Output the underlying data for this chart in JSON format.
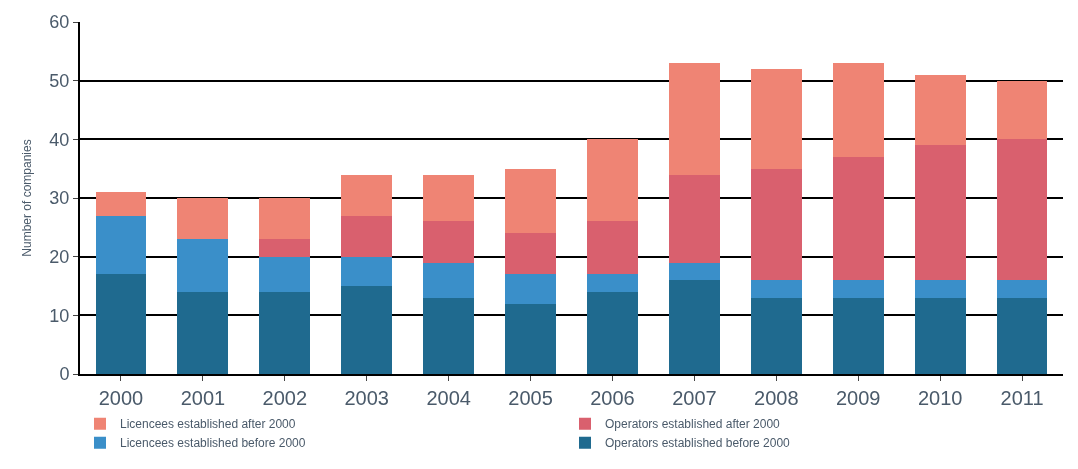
{
  "chart_data": {
    "type": "bar",
    "stacked": true,
    "ylabel": "Number of companies",
    "categories": [
      "2000",
      "2001",
      "2002",
      "2003",
      "2004",
      "2005",
      "2006",
      "2007",
      "2008",
      "2009",
      "2010",
      "2011"
    ],
    "series": [
      {
        "name": "Operators established before 2000",
        "color": "#1f6a8f",
        "values": [
          17,
          14,
          14,
          15,
          13,
          12,
          14,
          16,
          13,
          13,
          13,
          13
        ]
      },
      {
        "name": "Licencees established before 2000",
        "color": "#3a8fc9",
        "values": [
          10,
          9,
          6,
          5,
          6,
          5,
          3,
          3,
          3,
          3,
          3,
          3
        ]
      },
      {
        "name": "Operators established after 2000",
        "color": "#d9606e",
        "values": [
          0,
          0,
          3,
          7,
          7,
          7,
          9,
          15,
          19,
          21,
          23,
          24
        ]
      },
      {
        "name": "Licencees established after 2000",
        "color": "#ef8474",
        "values": [
          4,
          7,
          7,
          7,
          8,
          11,
          14,
          19,
          17,
          16,
          12,
          10
        ]
      }
    ],
    "ylim": [
      0,
      60
    ],
    "yticks": [
      0,
      10,
      20,
      30,
      40,
      50,
      60
    ],
    "grid": "y",
    "legend": "bottom"
  }
}
